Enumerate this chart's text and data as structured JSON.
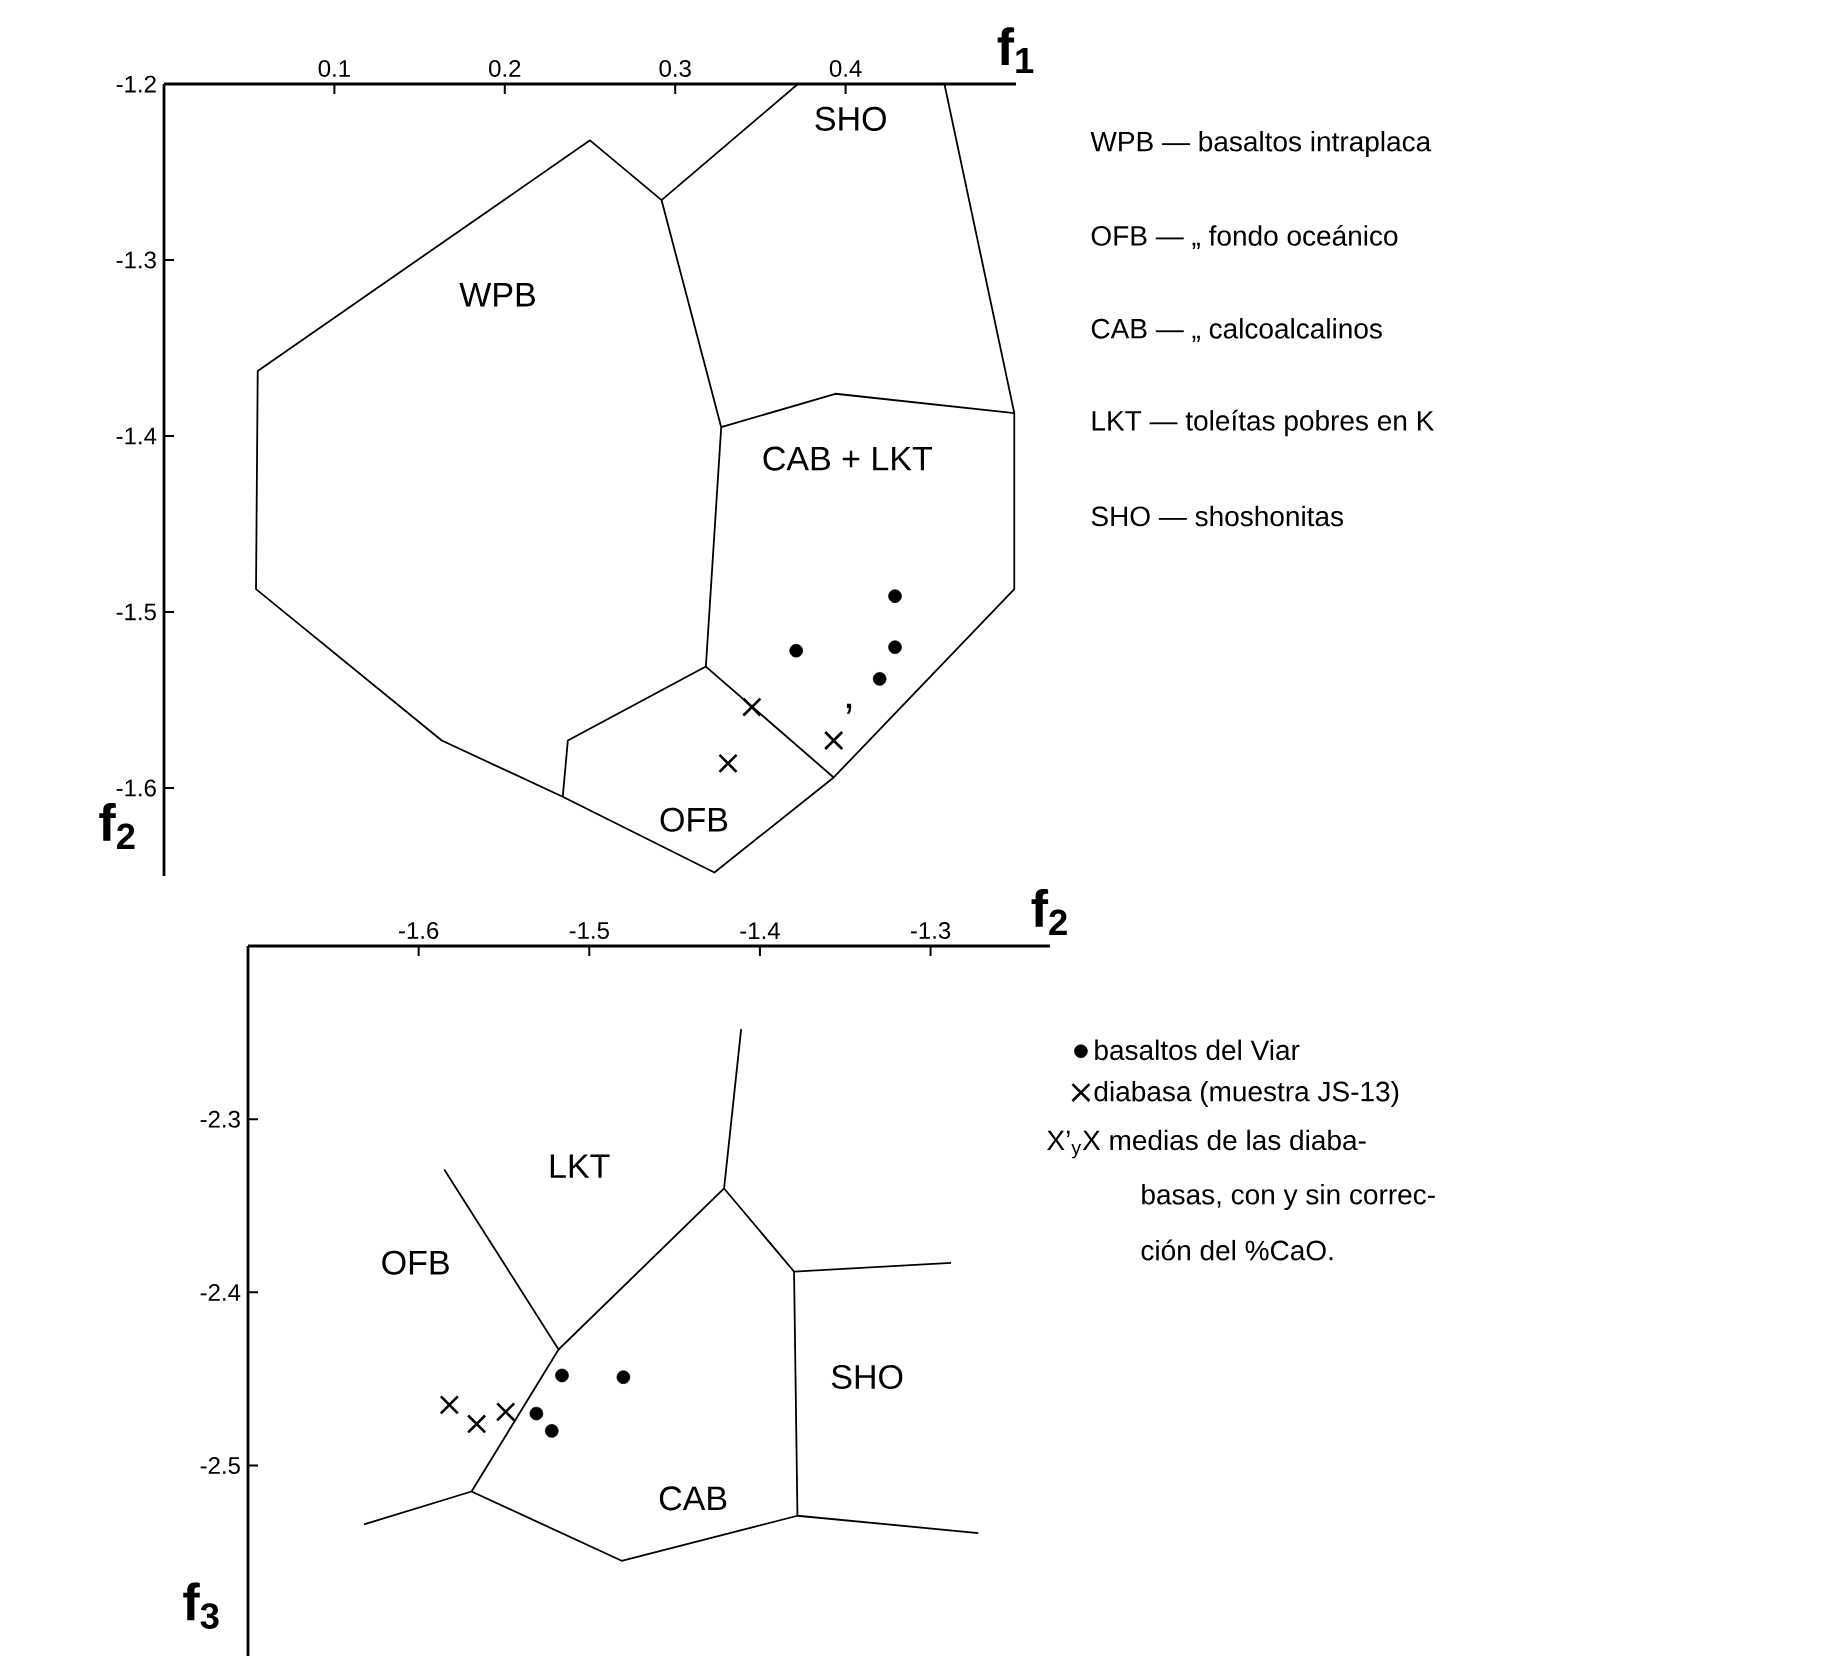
{
  "chart_data": [
    {
      "type": "scatter",
      "xlabel": "f$_{1}$",
      "ylabel": "f$_{2}$",
      "xlim": [
        0,
        0.5
      ],
      "ylim": [
        -1.65,
        -1.2
      ],
      "xticks": [
        0.1,
        0.2,
        0.3,
        0.4
      ],
      "yticks": [
        -1.2,
        -1.3,
        -1.4,
        -1.5,
        -1.6
      ],
      "series": [
        {
          "marker": "circle",
          "color": "#000000",
          "x": [
            0.371,
            0.429,
            0.429,
            0.42
          ],
          "values": [
            -1.522,
            -1.491,
            -1.52,
            -1.538
          ]
        },
        {
          "marker": "cross",
          "color": "#000000",
          "x": [
            0.345
          ],
          "values": [
            -1.554
          ]
        },
        {
          "marker": "cross",
          "color": "#000000",
          "x": [
            0.331,
            0.393
          ],
          "values": [
            -1.586,
            -1.573
          ]
        },
        {
          "type": "line",
          "color": "#000000",
          "x": [
            0.372,
            0.292,
            0.25,
            0.055,
            0.054,
            0.163,
            0.234,
            0.323,
            0.393,
            0.499,
            0.499,
            0.458
          ],
          "values": [
            -1.2,
            -1.266,
            -1.232,
            -1.363,
            -1.487,
            -1.573,
            -1.605,
            -1.648,
            -1.594,
            -1.487,
            -1.387,
            -1.2
          ]
        },
        {
          "type": "line",
          "color": "#000000",
          "x": [
            0.292,
            0.327,
            0.318,
            0.237,
            0.234
          ],
          "values": [
            -1.266,
            -1.395,
            -1.531,
            -1.573,
            -1.605
          ]
        },
        {
          "type": "line",
          "color": "#000000",
          "x": [
            0.327,
            0.394,
            0.499
          ],
          "values": [
            -1.395,
            -1.376,
            -1.387
          ]
        },
        {
          "type": "line",
          "color": "#000000",
          "x": [
            0.318,
            0.393
          ],
          "values": [
            -1.531,
            -1.594
          ]
        }
      ],
      "annotations": [
        "SHO",
        "WPB",
        "CAB + LKT",
        "OFB",
        {
          "text": "’",
          "x": 0.393,
          "y": -1.573
        },
        "WPB — basaltos intraplaca",
        "OFB —   „   fondo oceánico",
        "CAB —   „   calcoalcalinos",
        "LKT — toleítas pobres en K",
        "SHO — shoshonitas"
      ]
    },
    {
      "type": "scatter",
      "xlabel": "f$_{2}$",
      "ylabel": "f$_{3}$",
      "xlim": [
        -1.7,
        -1.23
      ],
      "ylim": [
        -2.61,
        -2.2
      ],
      "xticks": [
        -1.6,
        -1.5,
        -1.4,
        -1.3
      ],
      "yticks": [
        -2.3,
        -2.4,
        -2.5
      ],
      "legend": "right",
      "series": [
        {
          "name": "basaltos del Viar",
          "marker": "circle",
          "color": "#000000",
          "x": [
            -1.516,
            -1.48,
            -1.531,
            -1.522
          ],
          "values": [
            -2.448,
            -2.449,
            -2.47,
            -2.48
          ]
        },
        {
          "name": "diabasa (muestra JS-13)",
          "marker": "cross",
          "color": "#000000",
          "x": [
            -1.549
          ],
          "values": [
            -2.469
          ]
        },
        {
          "marker": "cross",
          "color": "#000000",
          "x": [
            -1.582,
            -1.566
          ],
          "values": [
            -2.465,
            -2.476
          ]
        },
        {
          "type": "line",
          "color": "#000000",
          "x": [
            -1.585,
            -1.518,
            -1.569,
            -1.632
          ],
          "values": [
            -2.329,
            -2.433,
            -2.515,
            -2.534
          ]
        },
        {
          "type": "line",
          "color": "#000000",
          "x": [
            -1.518,
            -1.421,
            -1.411
          ],
          "values": [
            -2.433,
            -2.34,
            -2.248
          ]
        },
        {
          "type": "line",
          "color": "#000000",
          "x": [
            -1.421,
            -1.38,
            -1.288
          ],
          "values": [
            -2.34,
            -2.388,
            -2.383
          ]
        },
        {
          "type": "line",
          "color": "#000000",
          "x": [
            -1.38,
            -1.378,
            -1.272
          ],
          "values": [
            -2.388,
            -2.529,
            -2.539
          ]
        },
        {
          "type": "line",
          "color": "#000000",
          "x": [
            -1.569,
            -1.481,
            -1.378
          ],
          "values": [
            -2.515,
            -2.555,
            -2.529
          ]
        }
      ],
      "annotations": [
        "LKT",
        "OFB",
        "SHO",
        "CAB",
        "X’$_{y}$X  medias de las diaba-",
        "basas, con y sin correc-",
        "ción del %CaO."
      ]
    }
  ]
}
